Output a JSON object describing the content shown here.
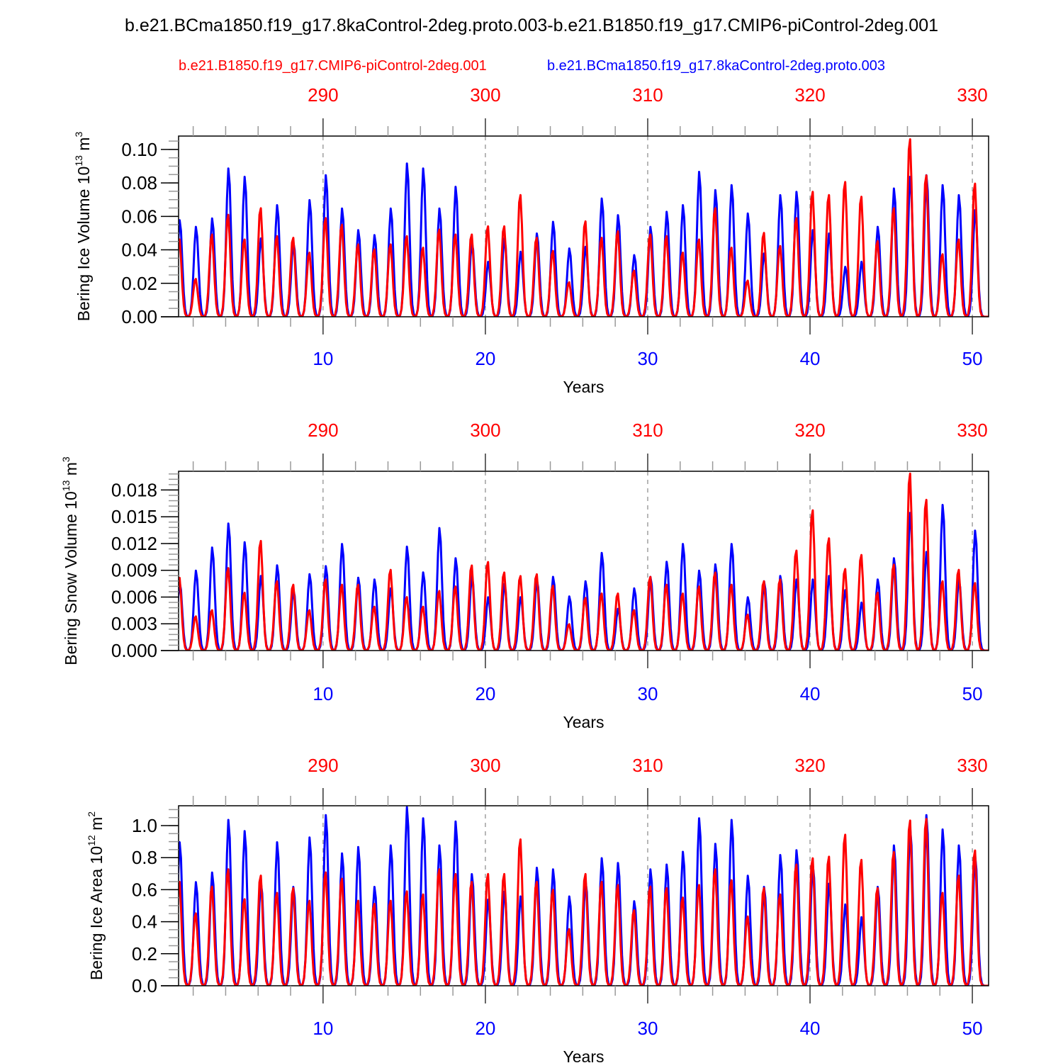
{
  "title": "b.e21.BCma1850.f19_g17.8kaControl-2deg.proto.003-b.e21.B1850.f19_g17.CMIP6-piControl-2deg.001",
  "legend": {
    "red_label": "b.e21.B1850.f19_g17.CMIP6-piControl-2deg.001",
    "blue_label": "b.e21.BCma1850.f19_g17.8kaControl-2deg.proto.003"
  },
  "colors": {
    "red": "#ff0000",
    "blue": "#0000ff"
  },
  "chart_data": [
    {
      "type": "line",
      "title": "",
      "xlabel": "Years",
      "ylabel": "Bering Ice Volume 10^13 m^3",
      "ylabel_main": "Bering Ice Volume 10",
      "ylabel_exp": "13",
      "ylabel_unit": " m",
      "ylabel_unit_exp": "3",
      "xlim": [
        1.1,
        51.0
      ],
      "ylim": [
        0,
        0.108
      ],
      "yticks": [
        0.0,
        0.02,
        0.04,
        0.06,
        0.08,
        0.1
      ],
      "ytick_labels": [
        "0.00",
        "0.02",
        "0.04",
        "0.06",
        "0.08",
        "0.10"
      ],
      "yminor_step": 0.005,
      "xticks_bottom": [
        10,
        20,
        30,
        40,
        50
      ],
      "xticks_bottom_labels": [
        "10",
        "20",
        "30",
        "40",
        "50"
      ],
      "xticks_top_labels": [
        "290",
        "300",
        "310",
        "320",
        "330"
      ],
      "grid": "dashed vertical at major x ticks",
      "series": [
        {
          "name": "b.e21.BCma1850.f19_g17.8kaControl-2deg.proto.003",
          "color": "blue",
          "annual_peaks": [
            0.058,
            0.054,
            0.059,
            0.089,
            0.084,
            0.047,
            0.067,
            0.045,
            0.07,
            0.085,
            0.065,
            0.052,
            0.049,
            0.065,
            0.092,
            0.089,
            0.065,
            0.078,
            0.045,
            0.033,
            0.047,
            0.039,
            0.05,
            0.057,
            0.041,
            0.042,
            0.071,
            0.061,
            0.037,
            0.054,
            0.063,
            0.067,
            0.087,
            0.076,
            0.079,
            0.062,
            0.038,
            0.073,
            0.075,
            0.052,
            0.05,
            0.03,
            0.033,
            0.054,
            0.077,
            0.084,
            0.085,
            0.079,
            0.073,
            0.064
          ]
        },
        {
          "name": "b.e21.B1850.f19_g17.CMIP6-piControl-2deg.001",
          "color": "red",
          "annual_peaks": [
            0.047,
            0.023,
            0.05,
            0.062,
            0.047,
            0.066,
            0.049,
            0.048,
            0.039,
            0.06,
            0.056,
            0.044,
            0.041,
            0.044,
            0.049,
            0.042,
            0.053,
            0.05,
            0.05,
            0.055,
            0.055,
            0.074,
            0.048,
            0.04,
            0.021,
            0.058,
            0.048,
            0.052,
            0.028,
            0.05,
            0.049,
            0.039,
            0.047,
            0.066,
            0.042,
            0.022,
            0.051,
            0.043,
            0.06,
            0.076,
            0.074,
            0.082,
            0.073,
            0.046,
            0.066,
            0.108,
            0.086,
            0.038,
            0.047,
            0.081
          ]
        }
      ]
    },
    {
      "type": "line",
      "title": "",
      "xlabel": "Years",
      "ylabel": "Bering Snow Volume 10^13 m^3",
      "ylabel_main": "Bering Snow Volume 10",
      "ylabel_exp": "13",
      "ylabel_unit": " m",
      "ylabel_unit_exp": "3",
      "xlim": [
        1.1,
        51.0
      ],
      "ylim": [
        0,
        0.0201
      ],
      "yticks": [
        0.0,
        0.003,
        0.006,
        0.009,
        0.012,
        0.015,
        0.018
      ],
      "ytick_labels": [
        "0.000",
        "0.003",
        "0.006",
        "0.009",
        "0.012",
        "0.015",
        "0.018"
      ],
      "yminor_step": 0.0006,
      "xticks_bottom": [
        10,
        20,
        30,
        40,
        50
      ],
      "xticks_bottom_labels": [
        "10",
        "20",
        "30",
        "40",
        "50"
      ],
      "xticks_top_labels": [
        "290",
        "300",
        "310",
        "320",
        "330"
      ],
      "grid": "dashed vertical at major x ticks",
      "series": [
        {
          "name": "b.e21.BCma1850.f19_g17.8kaControl-2deg.proto.003",
          "color": "blue",
          "annual_peaks": [
            0.0077,
            0.009,
            0.0116,
            0.0143,
            0.0122,
            0.0084,
            0.0096,
            0.0069,
            0.0086,
            0.0095,
            0.012,
            0.0082,
            0.008,
            0.007,
            0.0117,
            0.0088,
            0.0138,
            0.0104,
            0.0084,
            0.006,
            0.0075,
            0.006,
            0.008,
            0.0083,
            0.0061,
            0.0078,
            0.011,
            0.0047,
            0.007,
            0.0083,
            0.01,
            0.012,
            0.009,
            0.0097,
            0.012,
            0.006,
            0.0078,
            0.0084,
            0.008,
            0.008,
            0.0084,
            0.0068,
            0.0054,
            0.008,
            0.0104,
            0.0155,
            0.0111,
            0.0164,
            0.008,
            0.0135
          ]
        },
        {
          "name": "b.e21.B1850.f19_g17.CMIP6-piControl-2deg.001",
          "color": "red",
          "annual_peaks": [
            0.0083,
            0.0039,
            0.0046,
            0.0094,
            0.0066,
            0.0125,
            0.0079,
            0.0075,
            0.0046,
            0.0081,
            0.0075,
            0.0075,
            0.005,
            0.0092,
            0.0061,
            0.005,
            0.0068,
            0.0073,
            0.0097,
            0.0101,
            0.0089,
            0.0085,
            0.0087,
            0.0074,
            0.003,
            0.006,
            0.0065,
            0.0065,
            0.0046,
            0.0084,
            0.0075,
            0.0065,
            0.0073,
            0.0089,
            0.0075,
            0.0041,
            0.0079,
            0.0081,
            0.0114,
            0.016,
            0.0128,
            0.0093,
            0.0109,
            0.0066,
            0.0098,
            0.0202,
            0.0172,
            0.0079,
            0.0092,
            0.0077
          ]
        }
      ]
    },
    {
      "type": "line",
      "title": "",
      "xlabel": "Years",
      "ylabel": "Bering Ice Area 10^12 m^2",
      "ylabel_main": "Bering Ice Area 10",
      "ylabel_exp": "12",
      "ylabel_unit": " m",
      "ylabel_unit_exp": "2",
      "xlim": [
        1.1,
        51.0
      ],
      "ylim": [
        0,
        1.124
      ],
      "yticks": [
        0.0,
        0.2,
        0.4,
        0.6,
        0.8,
        1.0
      ],
      "ytick_labels": [
        "0.0",
        "0.2",
        "0.4",
        "0.6",
        "0.8",
        "1.0"
      ],
      "yminor_step": 0.05,
      "xticks_bottom": [
        10,
        20,
        30,
        40,
        50
      ],
      "xticks_bottom_labels": [
        "10",
        "20",
        "30",
        "40",
        "50"
      ],
      "xticks_top_labels": [
        "290",
        "300",
        "310",
        "320",
        "330"
      ],
      "grid": "dashed vertical at major x ticks",
      "series": [
        {
          "name": "b.e21.BCma1850.f19_g17.8kaControl-2deg.proto.003",
          "color": "blue",
          "annual_peaks": [
            0.9,
            0.65,
            0.71,
            1.04,
            0.97,
            0.65,
            0.9,
            0.62,
            0.93,
            1.07,
            0.83,
            0.87,
            0.62,
            0.88,
            1.12,
            1.05,
            0.88,
            1.03,
            0.7,
            0.54,
            0.59,
            0.56,
            0.74,
            0.73,
            0.56,
            0.66,
            0.8,
            0.77,
            0.53,
            0.73,
            0.76,
            0.84,
            1.05,
            0.89,
            1.04,
            0.69,
            0.62,
            0.82,
            0.85,
            0.76,
            0.64,
            0.51,
            0.43,
            0.62,
            0.88,
            0.99,
            1.07,
            0.98,
            0.88,
            0.82
          ]
        },
        {
          "name": "b.e21.B1850.f19_g17.CMIP6-piControl-2deg.001",
          "color": "red",
          "annual_peaks": [
            0.66,
            0.46,
            0.63,
            0.74,
            0.55,
            0.7,
            0.59,
            0.62,
            0.54,
            0.72,
            0.68,
            0.54,
            0.52,
            0.54,
            0.6,
            0.58,
            0.74,
            0.71,
            0.66,
            0.71,
            0.71,
            0.93,
            0.66,
            0.61,
            0.36,
            0.71,
            0.66,
            0.64,
            0.48,
            0.63,
            0.62,
            0.56,
            0.64,
            0.74,
            0.67,
            0.44,
            0.62,
            0.58,
            0.77,
            0.81,
            0.82,
            0.96,
            0.8,
            0.62,
            0.85,
            1.05,
            1.06,
            0.59,
            0.7,
            0.86
          ]
        }
      ]
    }
  ]
}
